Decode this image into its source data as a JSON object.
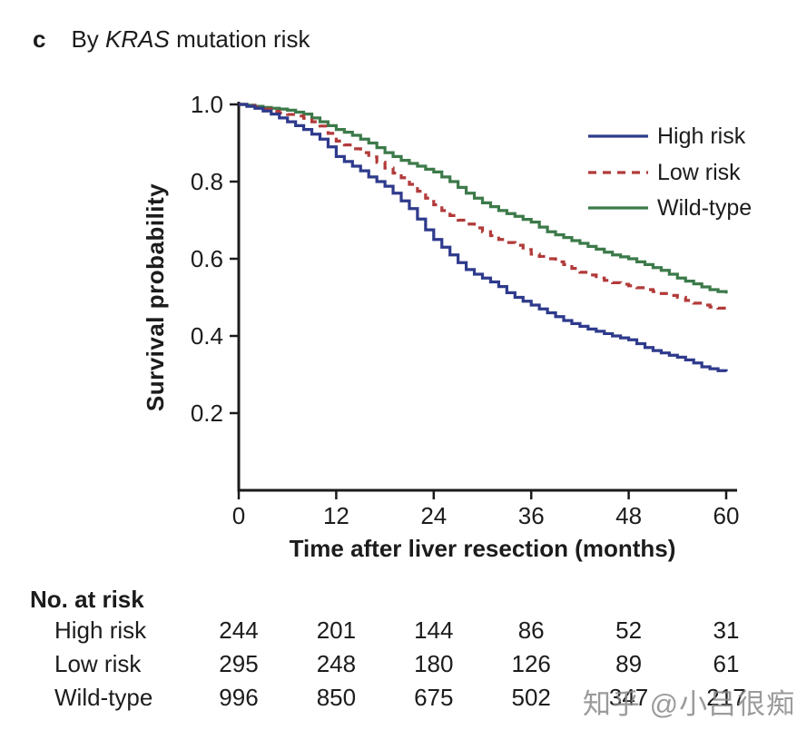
{
  "panel_label": "c",
  "title": {
    "prefix": "By ",
    "gene": "KRAS",
    "suffix": " mutation risk",
    "full": "By KRAS mutation risk"
  },
  "colors": {
    "high_risk": "#2e3a8c",
    "low_risk": "#b23a3a",
    "wild_type": "#3c7a4a",
    "axis": "#1b1b1b",
    "watermark": "#898989"
  },
  "chart_data": {
    "type": "line",
    "subtype": "kaplan-meier-step",
    "title": "By KRAS mutation risk",
    "xlabel": "Time after liver resection (months)",
    "ylabel": "Survival probability",
    "xlim": [
      0,
      60
    ],
    "ylim": [
      0,
      1.0
    ],
    "xticks": [
      0,
      12,
      24,
      36,
      48,
      60
    ],
    "yticks": [
      1.0,
      0.8,
      0.6,
      0.4,
      0.2
    ],
    "xtick_labels": [
      "0",
      "12",
      "24",
      "36",
      "48",
      "60"
    ],
    "ytick_labels": [
      "1.0",
      "0.8",
      "0.6",
      "0.4",
      "0.2"
    ],
    "grid": false,
    "legend_position": "upper right inside",
    "x_months_step": 1,
    "series": [
      {
        "name": "High risk",
        "color": "#2e3a8c",
        "style": "solid",
        "values": [
          1.0,
          0.995,
          0.99,
          0.983,
          0.975,
          0.965,
          0.955,
          0.945,
          0.935,
          0.923,
          0.91,
          0.89,
          0.865,
          0.852,
          0.84,
          0.828,
          0.812,
          0.8,
          0.788,
          0.77,
          0.75,
          0.73,
          0.703,
          0.675,
          0.65,
          0.63,
          0.61,
          0.59,
          0.572,
          0.56,
          0.55,
          0.54,
          0.528,
          0.512,
          0.5,
          0.49,
          0.48,
          0.47,
          0.46,
          0.45,
          0.44,
          0.432,
          0.425,
          0.418,
          0.412,
          0.406,
          0.4,
          0.395,
          0.39,
          0.38,
          0.37,
          0.362,
          0.356,
          0.35,
          0.345,
          0.338,
          0.33,
          0.32,
          0.315,
          0.31,
          0.308
        ]
      },
      {
        "name": "Low risk",
        "color": "#b23a3a",
        "style": "dashed",
        "values": [
          1.0,
          0.997,
          0.993,
          0.988,
          0.982,
          0.978,
          0.974,
          0.97,
          0.964,
          0.955,
          0.944,
          0.925,
          0.905,
          0.895,
          0.885,
          0.875,
          0.864,
          0.85,
          0.835,
          0.822,
          0.81,
          0.793,
          0.775,
          0.757,
          0.74,
          0.725,
          0.712,
          0.7,
          0.69,
          0.68,
          0.67,
          0.66,
          0.65,
          0.642,
          0.635,
          0.624,
          0.612,
          0.606,
          0.6,
          0.592,
          0.585,
          0.575,
          0.565,
          0.558,
          0.55,
          0.544,
          0.538,
          0.534,
          0.53,
          0.525,
          0.52,
          0.515,
          0.51,
          0.505,
          0.5,
          0.492,
          0.485,
          0.48,
          0.475,
          0.472,
          0.47
        ]
      },
      {
        "name": "Wild-type",
        "color": "#3c7a4a",
        "style": "solid",
        "values": [
          1.0,
          0.998,
          0.995,
          0.992,
          0.99,
          0.988,
          0.985,
          0.98,
          0.975,
          0.965,
          0.955,
          0.945,
          0.935,
          0.928,
          0.92,
          0.91,
          0.9,
          0.888,
          0.875,
          0.865,
          0.855,
          0.847,
          0.84,
          0.832,
          0.825,
          0.812,
          0.8,
          0.785,
          0.77,
          0.757,
          0.745,
          0.735,
          0.725,
          0.717,
          0.71,
          0.702,
          0.695,
          0.682,
          0.67,
          0.662,
          0.655,
          0.647,
          0.64,
          0.632,
          0.625,
          0.617,
          0.61,
          0.605,
          0.6,
          0.592,
          0.585,
          0.577,
          0.57,
          0.56,
          0.55,
          0.542,
          0.535,
          0.527,
          0.52,
          0.515,
          0.51
        ]
      }
    ]
  },
  "legend": {
    "entries": [
      "High risk",
      "Low risk",
      "Wild-type"
    ]
  },
  "risk_table": {
    "header": "No. at risk",
    "timepoints": [
      0,
      12,
      24,
      36,
      48,
      60
    ],
    "rows": [
      {
        "label": "High risk",
        "values": [
          "244",
          "201",
          "144",
          "86",
          "52",
          "31"
        ]
      },
      {
        "label": "Low risk",
        "values": [
          "295",
          "248",
          "180",
          "126",
          "89",
          "61"
        ]
      },
      {
        "label": "Wild-type",
        "values": [
          "996",
          "850",
          "675",
          "502",
          "347",
          "217"
        ]
      }
    ]
  },
  "watermark": {
    "text": "知乎 @小吕很痴"
  }
}
